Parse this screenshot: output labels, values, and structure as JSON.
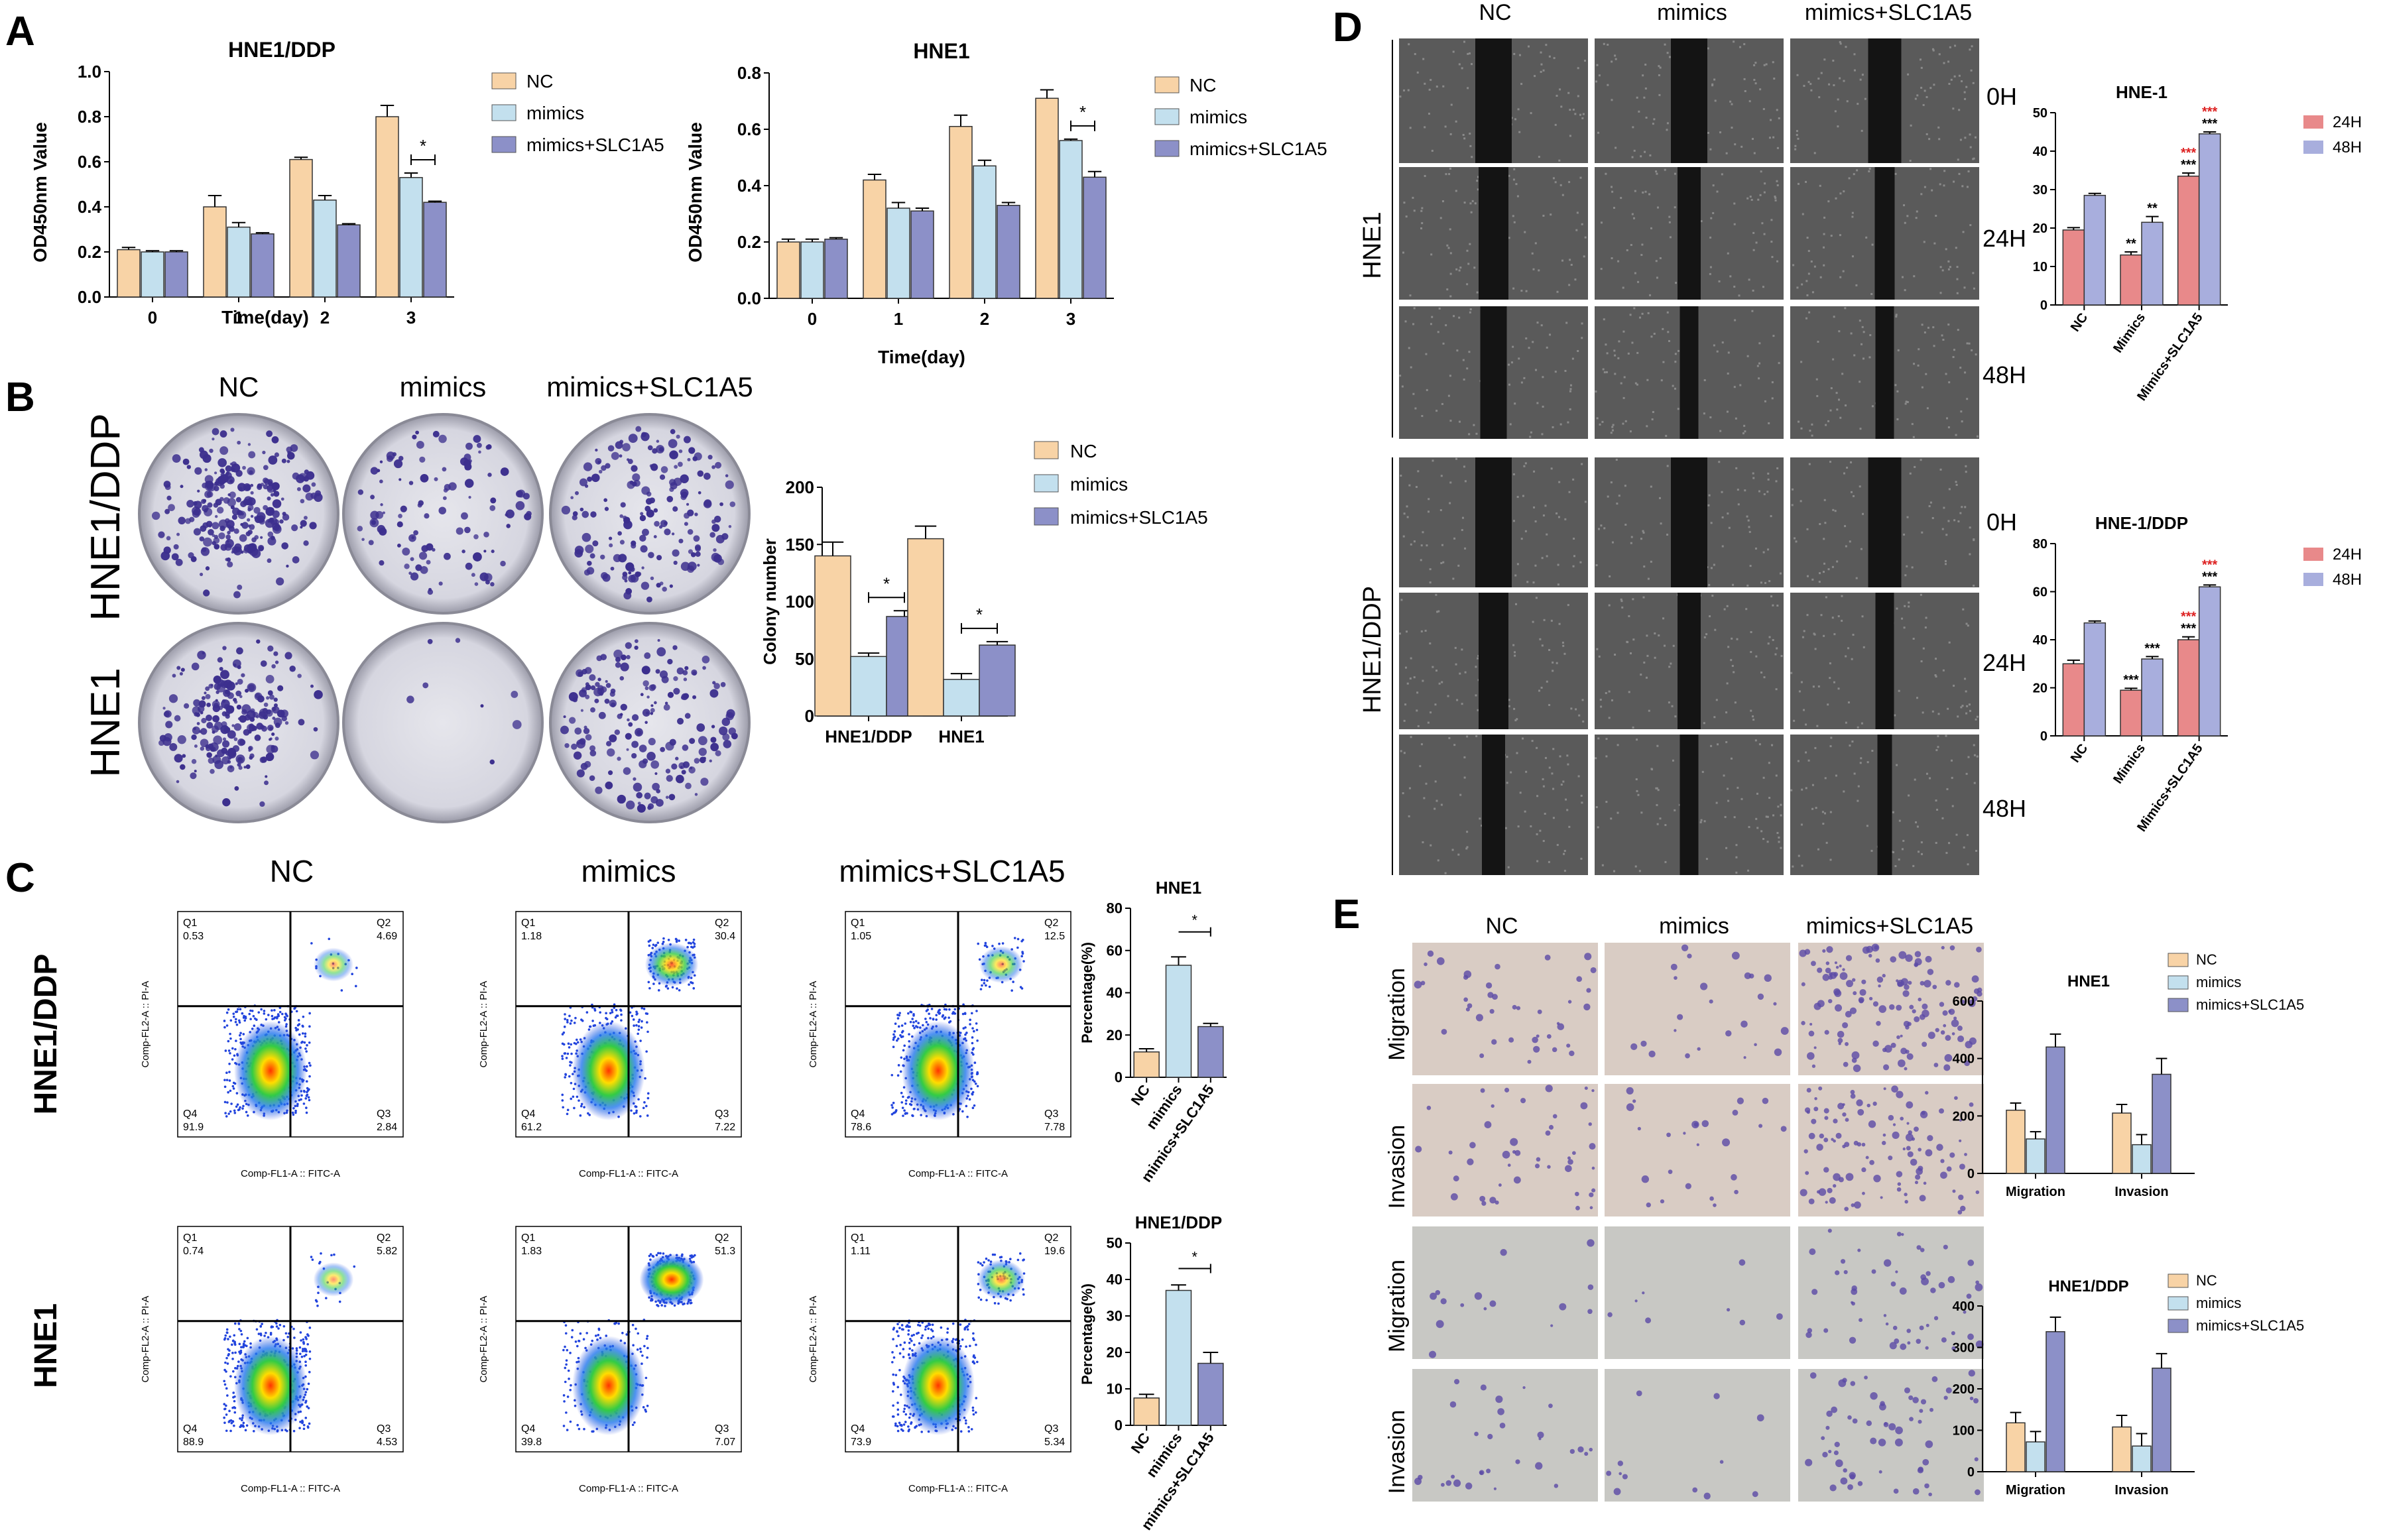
{
  "panel_letters": [
    "A",
    "B",
    "C",
    "D",
    "E"
  ],
  "colors": {
    "NC": "#f8d3a6",
    "mimics": "#c3e0ee",
    "mimics_slc": "#8c90c8",
    "h24": "#e8898a",
    "h48": "#a8aedd",
    "dot_red": "#dd2222",
    "cell_gray": "#3a3a3a"
  },
  "panel_A": {
    "ylabel": "OD450nm Value",
    "xlabel": "Time(day)",
    "legend": [
      "NC",
      "mimics",
      "mimics+SLC1A5"
    ]
  },
  "panel_B": {
    "col_labels": [
      "NC",
      "mimics",
      "mimics+SLC1A5"
    ],
    "row_labels": [
      "HNE1/DDP",
      "HNE1"
    ],
    "legend": [
      "NC",
      "mimics",
      "mimics+SLC1A5"
    ]
  },
  "panel_C": {
    "col_labels": [
      "NC",
      "mimics",
      "mimics+SLC1A5"
    ],
    "row_labels": [
      "HNE1/DDP",
      "HNE1"
    ],
    "flow_xlabel": "Comp-FL1-A :: FITC-A",
    "flow_ylabel": "Comp-FL2-A :: PI-A",
    "quadrants": [
      [
        {
          "Q1": "0.53",
          "Q2": "4.69",
          "Q3": "2.84",
          "Q4": "91.9"
        },
        {
          "Q1": "1.18",
          "Q2": "30.4",
          "Q3": "7.22",
          "Q4": "61.2"
        },
        {
          "Q1": "1.05",
          "Q2": "12.5",
          "Q3": "7.78",
          "Q4": "78.6"
        }
      ],
      [
        {
          "Q1": "0.74",
          "Q2": "5.82",
          "Q3": "4.53",
          "Q4": "88.9"
        },
        {
          "Q1": "1.83",
          "Q2": "51.3",
          "Q3": "7.07",
          "Q4": "39.8"
        },
        {
          "Q1": "1.11",
          "Q2": "19.6",
          "Q3": "5.34",
          "Q4": "73.9"
        }
      ]
    ]
  },
  "panel_D": {
    "col_labels": [
      "NC",
      "mimics",
      "mimics+SLC1A5"
    ],
    "row_labels": [
      "HNE1",
      "HNE1/DDP"
    ],
    "time_labels": [
      "0H",
      "24H",
      "48H"
    ],
    "legend": [
      "24H",
      "48H"
    ]
  },
  "panel_E": {
    "col_labels": [
      "NC",
      "mimics",
      "mimics+SLC1A5"
    ],
    "row_labels": [
      "Migration",
      "Invasion",
      "Migration",
      "Invasion"
    ],
    "legend": [
      "NC",
      "mimics",
      "mimics+SLC1A5"
    ]
  },
  "chart_data": [
    {
      "id": "A1",
      "type": "bar",
      "title": "HNE1/DDP",
      "xlabel": "Time(day)",
      "ylabel": "OD450nm Value",
      "categories": [
        "0",
        "1",
        "2",
        "3"
      ],
      "ylim": [
        0,
        1.0
      ],
      "yticks": [
        0.0,
        0.2,
        0.4,
        0.6,
        0.8,
        1.0
      ],
      "series": [
        {
          "name": "NC",
          "values": [
            0.21,
            0.4,
            0.61,
            0.8
          ],
          "err": [
            0.01,
            0.05,
            0.01,
            0.05
          ]
        },
        {
          "name": "mimics",
          "values": [
            0.2,
            0.31,
            0.43,
            0.53
          ],
          "err": [
            0.005,
            0.02,
            0.02,
            0.02
          ]
        },
        {
          "name": "mimics+SLC1A5",
          "values": [
            0.2,
            0.28,
            0.32,
            0.42
          ],
          "err": [
            0.005,
            0.005,
            0.005,
            0.005
          ]
        }
      ],
      "significance": [
        "",
        "",
        "",
        "*"
      ]
    },
    {
      "id": "A2",
      "type": "bar",
      "title": "HNE1",
      "xlabel": "Time(day)",
      "ylabel": "OD450nm Value",
      "categories": [
        "0",
        "1",
        "2",
        "3"
      ],
      "ylim": [
        0,
        0.8
      ],
      "yticks": [
        0.0,
        0.2,
        0.4,
        0.6,
        0.8
      ],
      "series": [
        {
          "name": "NC",
          "values": [
            0.2,
            0.42,
            0.61,
            0.71
          ],
          "err": [
            0.01,
            0.02,
            0.04,
            0.03
          ]
        },
        {
          "name": "mimics",
          "values": [
            0.2,
            0.32,
            0.47,
            0.56
          ],
          "err": [
            0.01,
            0.02,
            0.02,
            0.005
          ]
        },
        {
          "name": "mimics+SLC1A5",
          "values": [
            0.21,
            0.31,
            0.33,
            0.43
          ],
          "err": [
            0.005,
            0.01,
            0.01,
            0.02
          ]
        }
      ],
      "significance": [
        "",
        "",
        "",
        "*"
      ]
    },
    {
      "id": "B",
      "type": "bar",
      "title": "",
      "xlabel": "",
      "ylabel": "Colony number",
      "categories": [
        "HNE1/DDP",
        "HNE1"
      ],
      "ylim": [
        0,
        200
      ],
      "yticks": [
        0,
        50,
        100,
        150,
        200
      ],
      "series": [
        {
          "name": "NC",
          "values": [
            140,
            155
          ],
          "err": [
            12,
            11
          ]
        },
        {
          "name": "mimics",
          "values": [
            52,
            32
          ],
          "err": [
            3,
            5
          ]
        },
        {
          "name": "mimics+SLC1A5",
          "values": [
            87,
            62
          ],
          "err": [
            5,
            3
          ]
        }
      ],
      "significance": [
        "*",
        "*"
      ]
    },
    {
      "id": "C1",
      "type": "bar",
      "title": "HNE1",
      "xlabel": "",
      "ylabel": "Percentage(%)",
      "categories": [
        "NC",
        "mimics",
        "mimics+SLC1A5"
      ],
      "ylim": [
        0,
        80
      ],
      "yticks": [
        0,
        20,
        40,
        60,
        80
      ],
      "series": [
        {
          "name": "",
          "values": [
            12,
            53,
            24
          ],
          "err": [
            1.5,
            4,
            1.5
          ]
        }
      ],
      "significance": [
        "*"
      ]
    },
    {
      "id": "C2",
      "type": "bar",
      "title": "HNE1/DDP",
      "xlabel": "",
      "ylabel": "Percentage(%)",
      "categories": [
        "NC",
        "mimics",
        "mimics+SLC1A5"
      ],
      "ylim": [
        0,
        50
      ],
      "yticks": [
        0,
        10,
        20,
        30,
        40,
        50
      ],
      "series": [
        {
          "name": "",
          "values": [
            7.5,
            37,
            17
          ],
          "err": [
            1,
            1.5,
            3
          ]
        }
      ],
      "significance": [
        "*"
      ]
    },
    {
      "id": "D1",
      "type": "bar",
      "title": "HNE-1",
      "xlabel": "",
      "ylabel": "",
      "categories": [
        "NC",
        "Mimics",
        "Mimics+SLC1A5"
      ],
      "ylim": [
        0,
        50
      ],
      "yticks": [
        0,
        10,
        20,
        30,
        40,
        50
      ],
      "series": [
        {
          "name": "24H",
          "values": [
            19.5,
            13,
            33.5
          ],
          "err": [
            0.6,
            0.8,
            0.8
          ],
          "marks": [
            "",
            "**",
            "***"
          ]
        },
        {
          "name": "48H",
          "values": [
            28.5,
            21.5,
            44.5
          ],
          "err": [
            0.5,
            1.5,
            0.5
          ],
          "marks": [
            "",
            "**",
            "***"
          ]
        }
      ],
      "red_marks": [
        false,
        false,
        true
      ]
    },
    {
      "id": "D2",
      "type": "bar",
      "title": "HNE-1/DDP",
      "xlabel": "",
      "ylabel": "",
      "categories": [
        "NC",
        "Mimics",
        "Mimics+SLC1A5"
      ],
      "ylim": [
        0,
        80
      ],
      "yticks": [
        0,
        20,
        40,
        60,
        80
      ],
      "series": [
        {
          "name": "24H",
          "values": [
            30,
            19,
            40
          ],
          "err": [
            1.5,
            0.8,
            1.2
          ],
          "marks": [
            "",
            "***",
            "***"
          ]
        },
        {
          "name": "48H",
          "values": [
            47,
            32,
            62
          ],
          "err": [
            0.8,
            1.0,
            0.8
          ],
          "marks": [
            "",
            "***",
            "***"
          ]
        }
      ],
      "red_marks": [
        false,
        false,
        true
      ]
    },
    {
      "id": "E1",
      "type": "bar",
      "title": "HNE1",
      "xlabel": "",
      "ylabel": "",
      "categories": [
        "Migration",
        "Invasion"
      ],
      "ylim": [
        0,
        600
      ],
      "yticks": [
        0,
        200,
        400,
        600
      ],
      "series": [
        {
          "name": "NC",
          "values": [
            220,
            210
          ],
          "err": [
            25,
            30
          ]
        },
        {
          "name": "mimics",
          "values": [
            120,
            100
          ],
          "err": [
            25,
            35
          ]
        },
        {
          "name": "mimics+SLC1A5",
          "values": [
            440,
            345
          ],
          "err": [
            45,
            55
          ]
        }
      ]
    },
    {
      "id": "E2",
      "type": "bar",
      "title": "HNE1/DDP",
      "xlabel": "",
      "ylabel": "",
      "categories": [
        "Migration",
        "Invasion"
      ],
      "ylim": [
        0,
        400
      ],
      "yticks": [
        0,
        100,
        200,
        300,
        400
      ],
      "series": [
        {
          "name": "NC",
          "values": [
            118,
            108
          ],
          "err": [
            25,
            28
          ]
        },
        {
          "name": "mimics",
          "values": [
            72,
            62
          ],
          "err": [
            25,
            30
          ]
        },
        {
          "name": "mimics+SLC1A5",
          "values": [
            338,
            250
          ],
          "err": [
            35,
            35
          ]
        }
      ]
    }
  ]
}
